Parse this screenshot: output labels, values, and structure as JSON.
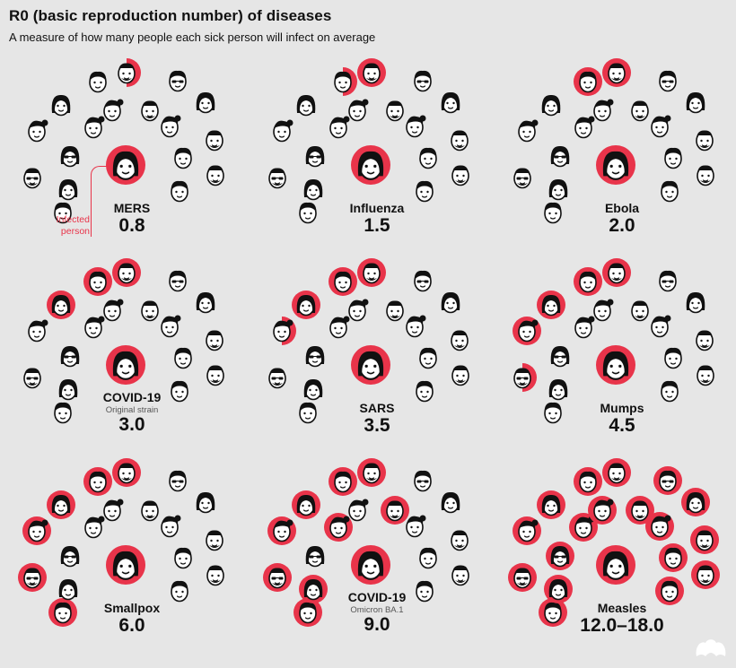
{
  "header": {
    "title": "R0 (basic reproduction number) of diseases",
    "subtitle": "A measure of how many people each sick person will infect on average"
  },
  "callout": {
    "label": "Infected person"
  },
  "colors": {
    "infected": "#e8344a",
    "background": "#e6e6e6",
    "ink": "#111111",
    "face": "#ffffff"
  },
  "chart_data": {
    "type": "pictogram",
    "unit": "people infected per sick person",
    "max_people_shown": 18,
    "diseases": [
      {
        "name": "MERS",
        "note": "",
        "value_label": "0.8",
        "r0": 0.8
      },
      {
        "name": "Influenza",
        "note": "",
        "value_label": "1.5",
        "r0": 1.5
      },
      {
        "name": "Ebola",
        "note": "",
        "value_label": "2.0",
        "r0": 2.0
      },
      {
        "name": "COVID-19",
        "note": "Original strain",
        "value_label": "3.0",
        "r0": 3.0
      },
      {
        "name": "SARS",
        "note": "",
        "value_label": "3.5",
        "r0": 3.5
      },
      {
        "name": "Mumps",
        "note": "",
        "value_label": "4.5",
        "r0": 4.5
      },
      {
        "name": "Smallpox",
        "note": "",
        "value_label": "6.0",
        "r0": 6.0
      },
      {
        "name": "COVID-19",
        "note": "Omicron BA.1",
        "value_label": "9.0",
        "r0": 9.0
      },
      {
        "name": "Measles",
        "note": "",
        "value_label": "12.0–18.0",
        "r0": 18.0
      }
    ]
  }
}
